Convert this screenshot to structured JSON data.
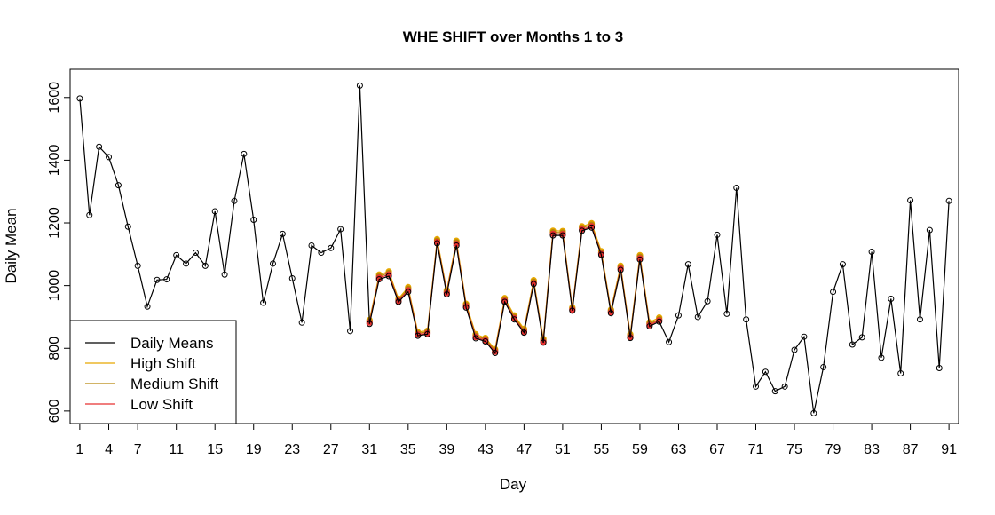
{
  "chart_data": {
    "type": "line",
    "title": "WHE SHIFT over Months 1 to 3",
    "xlabel": "Day",
    "ylabel": "Daily Mean",
    "xlim": [
      0,
      92
    ],
    "ylim": [
      560,
      1690
    ],
    "x_ticks": [
      1,
      4,
      7,
      11,
      15,
      19,
      23,
      27,
      31,
      35,
      39,
      43,
      47,
      51,
      55,
      59,
      63,
      67,
      71,
      75,
      79,
      83,
      87,
      91
    ],
    "y_ticks": [
      600,
      800,
      1000,
      1200,
      1400,
      1600
    ],
    "grid": false,
    "legend_position": "bottom-left",
    "series": [
      {
        "name": "Daily Means",
        "color": "#000000",
        "start_day": 1,
        "values": [
          1597,
          1225,
          1443,
          1410,
          1320,
          1188,
          1063,
          933,
          1018,
          1020,
          1097,
          1070,
          1105,
          1063,
          1237,
          1035,
          1270,
          1420,
          1210,
          945,
          1070,
          1165,
          1023,
          882,
          1128,
          1105,
          1120,
          1180,
          855,
          1638,
          878,
          1020,
          1030,
          948,
          980,
          840,
          845,
          1135,
          972,
          1128,
          930,
          832,
          822,
          785,
          948,
          892,
          850,
          1005,
          818,
          1160,
          1160,
          920,
          1175,
          1185,
          1098,
          912,
          1050,
          833,
          1083,
          870,
          885,
          820,
          905,
          1068,
          900,
          950,
          1162,
          910,
          1312,
          892,
          678,
          725,
          663,
          678,
          795,
          837,
          593,
          740,
          980,
          1068,
          812,
          835,
          1108,
          770,
          958,
          720,
          1272,
          892,
          1177,
          737,
          1270
        ]
      },
      {
        "name": "High Shift",
        "color": "#e6a800",
        "start_day": 31,
        "values": [
          890,
          1035,
          1045,
          958,
          995,
          852,
          856,
          1148,
          985,
          1143,
          942,
          845,
          833,
          797,
          960,
          905,
          862,
          1017,
          830,
          1175,
          1174,
          930,
          1189,
          1199,
          1110,
          923,
          1063,
          845,
          1097,
          883,
          898
        ]
      },
      {
        "name": "Medium Shift",
        "color": "#b8860b",
        "start_day": 31,
        "values": [
          886,
          1030,
          1040,
          954,
          990,
          848,
          852,
          1143,
          980,
          1138,
          938,
          840,
          829,
          793,
          955,
          900,
          857,
          1012,
          825,
          1170,
          1169,
          926,
          1184,
          1194,
          1105,
          919,
          1058,
          840,
          1092,
          878,
          893
        ]
      },
      {
        "name": "Low Shift",
        "color": "#e83030",
        "start_day": 31,
        "values": [
          882,
          1025,
          1035,
          951,
          985,
          844,
          848,
          1139,
          976,
          1133,
          934,
          836,
          825,
          789,
          951,
          896,
          853,
          1008,
          821,
          1165,
          1164,
          923,
          1179,
          1189,
          1101,
          915,
          1054,
          836,
          1087,
          874,
          889
        ]
      }
    ]
  }
}
